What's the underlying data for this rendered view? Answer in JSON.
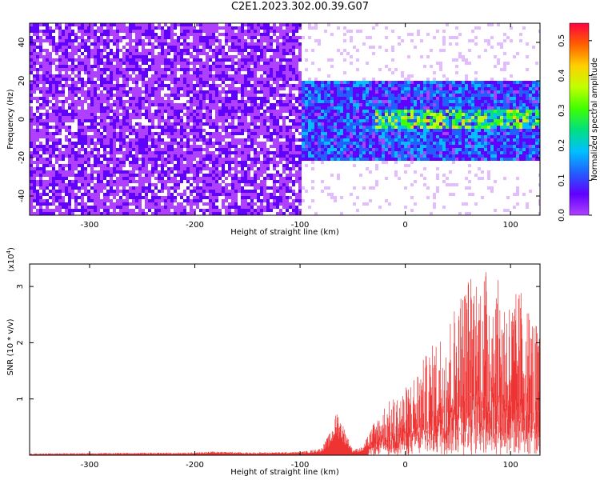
{
  "title": "C2E1.2023.302.00.39.G07",
  "chart_data": [
    {
      "type": "heatmap",
      "xlabel": "Height of straight line (km)",
      "ylabel": "Frequency (Hz)",
      "xlim": [
        -357,
        128
      ],
      "ylim": [
        -50,
        50
      ],
      "xticks": [
        -300,
        -200,
        -100,
        0,
        100
      ],
      "yticks": [
        -40,
        -20,
        0,
        20,
        40
      ],
      "colorbar": {
        "label": "Normalized spectral amplitude",
        "range": [
          0.0,
          0.55
        ],
        "ticks": [
          0.0,
          0.1,
          0.2,
          0.3,
          0.4,
          0.5
        ],
        "colors": [
          "#b040ff",
          "#6000ff",
          "#2060ff",
          "#00c0ff",
          "#00e080",
          "#40ff00",
          "#c0ff00",
          "#ffd000",
          "#ff6000",
          "#ff0040"
        ]
      },
      "regions": [
        {
          "x_range": [
            -357,
            -100
          ],
          "freq_band": [
            -50,
            50
          ],
          "typical_amplitude": 0.05
        },
        {
          "x_range": [
            -100,
            128
          ],
          "freq_band": [
            -20,
            20
          ],
          "typical_amplitude": 0.12
        },
        {
          "x_range": [
            -30,
            128
          ],
          "freq_band": [
            -5,
            5
          ],
          "typical_amplitude": 0.25
        }
      ],
      "grid": false
    },
    {
      "type": "line",
      "xlabel": "Height of straight line (km)",
      "ylabel": "SNR (10 * v/v)",
      "yscale_note": "(x10",
      "yscale_exp": "4",
      "xlim": [
        -357,
        128
      ],
      "ylim": [
        0,
        3.4
      ],
      "xticks": [
        -300,
        -200,
        -100,
        0,
        100
      ],
      "yticks": [
        1,
        2,
        3
      ],
      "color": "#ee3333",
      "envelope": {
        "x": [
          -357,
          -300,
          -200,
          -180,
          -150,
          -100,
          -80,
          -70,
          -65,
          -55,
          -50,
          -40,
          -30,
          -20,
          0,
          20,
          40,
          60,
          80,
          100,
          110,
          128
        ],
        "y": [
          0.03,
          0.04,
          0.05,
          0.07,
          0.05,
          0.06,
          0.12,
          0.45,
          0.82,
          0.35,
          0.1,
          0.15,
          0.6,
          0.9,
          1.2,
          1.8,
          2.4,
          3.25,
          3.35,
          2.8,
          3.0,
          2.2
        ]
      },
      "grid": false
    }
  ]
}
